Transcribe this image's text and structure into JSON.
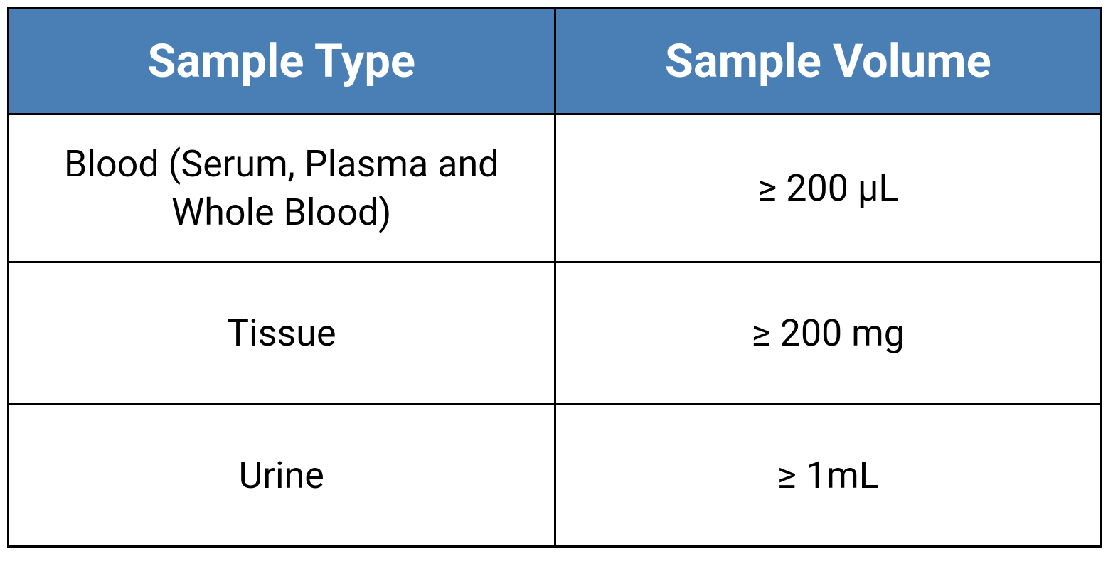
{
  "table": {
    "type": "table",
    "header_bg_color": "#4a7fb5",
    "header_text_color": "#ffffff",
    "cell_bg_color": "#ffffff",
    "cell_text_color": "#000000",
    "border_color": "#000000",
    "border_width": 3,
    "header_fontsize": 65,
    "cell_fontsize": 52,
    "header_fontweight": 700,
    "columns": [
      {
        "label": "Sample Type",
        "width_pct": 50
      },
      {
        "label": "Sample Volume",
        "width_pct": 50
      }
    ],
    "rows": [
      {
        "type": "Blood (Serum, Plasma and Whole Blood)",
        "volume": "≥ 200 μL"
      },
      {
        "type": "Tissue",
        "volume": "≥ 200 mg"
      },
      {
        "type": "Urine",
        "volume": "≥ 1mL"
      }
    ]
  }
}
